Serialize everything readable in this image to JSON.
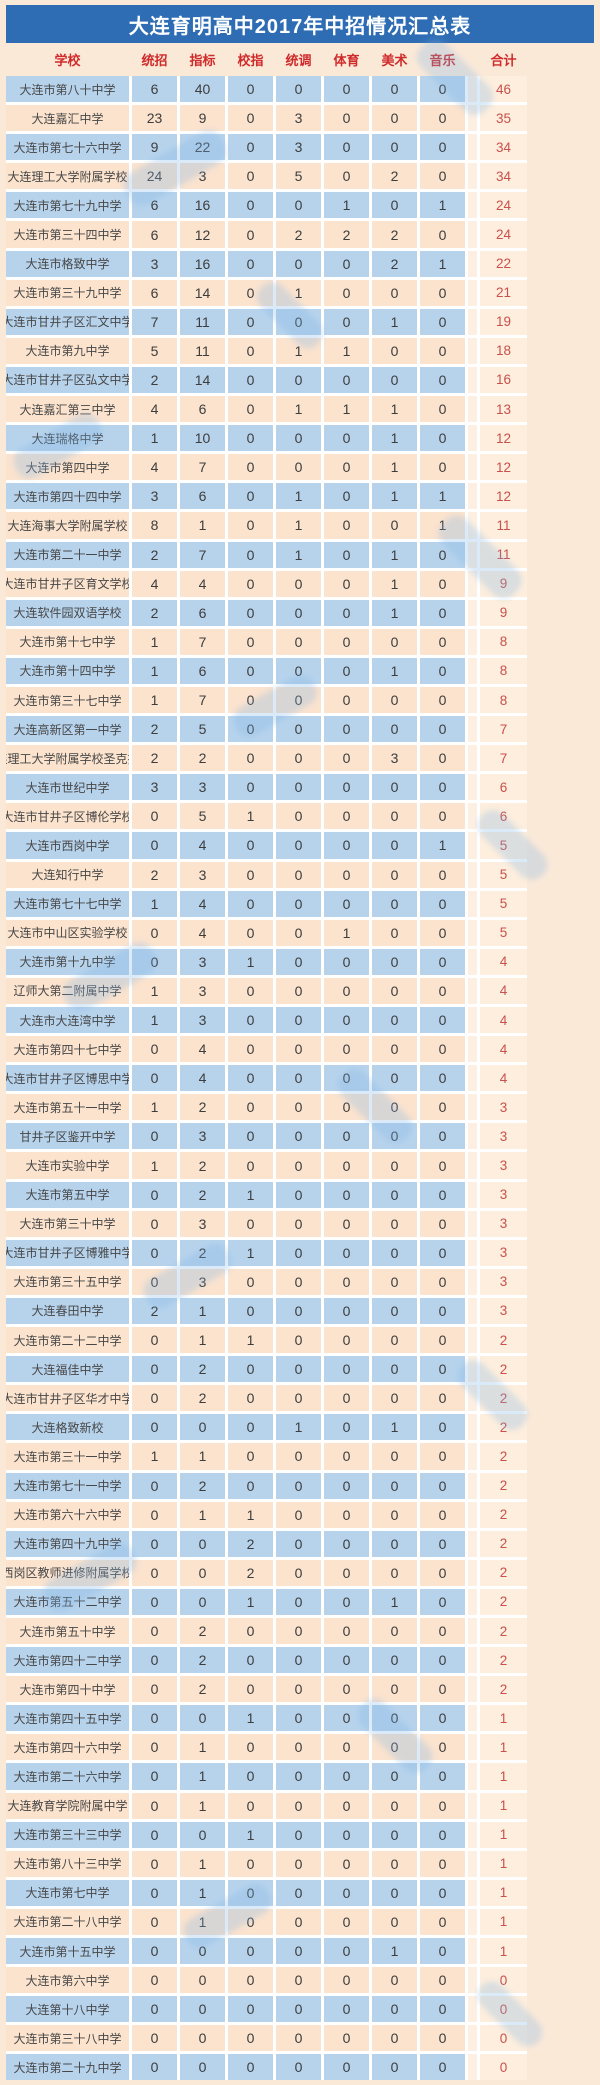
{
  "title": "大连育明高中2017年中招情况汇总表",
  "colors": {
    "title_bar": "#2e6db4",
    "header_text": "#cf2b2b",
    "row_blue": "#b7d3ec",
    "row_peach": "#fbe3ce",
    "page_background": "#fbe9d8",
    "total_text": "#c9504d"
  },
  "chart_data": {
    "type": "table",
    "title": "大连育明高中2017年中招情况汇总表",
    "columns": [
      "学校",
      "统招",
      "指标",
      "校指",
      "统调",
      "体育",
      "美术",
      "音乐",
      "合计"
    ],
    "rows": [
      {
        "school": "大连市第八十中学",
        "values": [
          6,
          40,
          0,
          0,
          0,
          0,
          0
        ],
        "total": 46
      },
      {
        "school": "大连嘉汇中学",
        "values": [
          23,
          9,
          0,
          3,
          0,
          0,
          0
        ],
        "total": 35
      },
      {
        "school": "大连市第七十六中学",
        "values": [
          9,
          22,
          0,
          3,
          0,
          0,
          0
        ],
        "total": 34
      },
      {
        "school": "大连理工大学附属学校",
        "values": [
          24,
          3,
          0,
          5,
          0,
          2,
          0
        ],
        "total": 34
      },
      {
        "school": "大连市第七十九中学",
        "values": [
          6,
          16,
          0,
          0,
          1,
          0,
          1
        ],
        "total": 24
      },
      {
        "school": "大连市第三十四中学",
        "values": [
          6,
          12,
          0,
          2,
          2,
          2,
          0
        ],
        "total": 24
      },
      {
        "school": "大连市格致中学",
        "values": [
          3,
          16,
          0,
          0,
          0,
          2,
          1
        ],
        "total": 22
      },
      {
        "school": "大连市第三十九中学",
        "values": [
          6,
          14,
          0,
          1,
          0,
          0,
          0
        ],
        "total": 21
      },
      {
        "school": "大连市甘井子区汇文中学",
        "values": [
          7,
          11,
          0,
          0,
          0,
          1,
          0
        ],
        "total": 19
      },
      {
        "school": "大连市第九中学",
        "values": [
          5,
          11,
          0,
          1,
          1,
          0,
          0
        ],
        "total": 18
      },
      {
        "school": "大连市甘井子区弘文中学",
        "values": [
          2,
          14,
          0,
          0,
          0,
          0,
          0
        ],
        "total": 16
      },
      {
        "school": "大连嘉汇第三中学",
        "values": [
          4,
          6,
          0,
          1,
          1,
          1,
          0
        ],
        "total": 13
      },
      {
        "school": "大连瑞格中学",
        "values": [
          1,
          10,
          0,
          0,
          0,
          1,
          0
        ],
        "total": 12
      },
      {
        "school": "大连市第四中学",
        "values": [
          4,
          7,
          0,
          0,
          0,
          1,
          0
        ],
        "total": 12
      },
      {
        "school": "大连市第四十四中学",
        "values": [
          3,
          6,
          0,
          1,
          0,
          1,
          1
        ],
        "total": 12
      },
      {
        "school": "大连海事大学附属学校",
        "values": [
          8,
          1,
          0,
          1,
          0,
          0,
          1
        ],
        "total": 11
      },
      {
        "school": "大连市第二十一中学",
        "values": [
          2,
          7,
          0,
          1,
          0,
          1,
          0
        ],
        "total": 11
      },
      {
        "school": "大连市甘井子区育文学校",
        "values": [
          4,
          4,
          0,
          0,
          0,
          1,
          0
        ],
        "total": 9
      },
      {
        "school": "大连软件园双语学校",
        "values": [
          2,
          6,
          0,
          0,
          0,
          1,
          0
        ],
        "total": 9
      },
      {
        "school": "大连市第十七中学",
        "values": [
          1,
          7,
          0,
          0,
          0,
          0,
          0
        ],
        "total": 8
      },
      {
        "school": "大连市第十四中学",
        "values": [
          1,
          6,
          0,
          0,
          0,
          1,
          0
        ],
        "total": 8
      },
      {
        "school": "大连市第三十七中学",
        "values": [
          1,
          7,
          0,
          0,
          0,
          0,
          0
        ],
        "total": 8
      },
      {
        "school": "大连高新区第一中学",
        "values": [
          2,
          5,
          0,
          0,
          0,
          0,
          0
        ],
        "total": 7
      },
      {
        "school": "大连理工大学附属学校圣克拉玛",
        "values": [
          2,
          2,
          0,
          0,
          0,
          3,
          0
        ],
        "total": 7
      },
      {
        "school": "大连市世纪中学",
        "values": [
          3,
          3,
          0,
          0,
          0,
          0,
          0
        ],
        "total": 6
      },
      {
        "school": "大连市甘井子区博伦学校",
        "values": [
          0,
          5,
          1,
          0,
          0,
          0,
          0
        ],
        "total": 6
      },
      {
        "school": "大连市西岗中学",
        "values": [
          0,
          4,
          0,
          0,
          0,
          0,
          1
        ],
        "total": 5
      },
      {
        "school": "大连知行中学",
        "values": [
          2,
          3,
          0,
          0,
          0,
          0,
          0
        ],
        "total": 5
      },
      {
        "school": "大连市第七十七中学",
        "values": [
          1,
          4,
          0,
          0,
          0,
          0,
          0
        ],
        "total": 5
      },
      {
        "school": "大连市中山区实验学校",
        "values": [
          0,
          4,
          0,
          0,
          1,
          0,
          0
        ],
        "total": 5
      },
      {
        "school": "大连市第十九中学",
        "values": [
          0,
          3,
          1,
          0,
          0,
          0,
          0
        ],
        "total": 4
      },
      {
        "school": "辽师大第二附属中学",
        "values": [
          1,
          3,
          0,
          0,
          0,
          0,
          0
        ],
        "total": 4
      },
      {
        "school": "大连市大连湾中学",
        "values": [
          1,
          3,
          0,
          0,
          0,
          0,
          0
        ],
        "total": 4
      },
      {
        "school": "大连市第四十七中学",
        "values": [
          0,
          4,
          0,
          0,
          0,
          0,
          0
        ],
        "total": 4
      },
      {
        "school": "大连市甘井子区博思中学",
        "values": [
          0,
          4,
          0,
          0,
          0,
          0,
          0
        ],
        "total": 4
      },
      {
        "school": "大连市第五十一中学",
        "values": [
          1,
          2,
          0,
          0,
          0,
          0,
          0
        ],
        "total": 3
      },
      {
        "school": "甘井子区鉴开中学",
        "values": [
          0,
          3,
          0,
          0,
          0,
          0,
          0
        ],
        "total": 3
      },
      {
        "school": "大连市实验中学",
        "values": [
          1,
          2,
          0,
          0,
          0,
          0,
          0
        ],
        "total": 3
      },
      {
        "school": "大连市第五中学",
        "values": [
          0,
          2,
          1,
          0,
          0,
          0,
          0
        ],
        "total": 3
      },
      {
        "school": "大连市第三十中学",
        "values": [
          0,
          3,
          0,
          0,
          0,
          0,
          0
        ],
        "total": 3
      },
      {
        "school": "大连市甘井子区博雅中学",
        "values": [
          0,
          2,
          1,
          0,
          0,
          0,
          0
        ],
        "total": 3
      },
      {
        "school": "大连市第三十五中学",
        "values": [
          0,
          3,
          0,
          0,
          0,
          0,
          0
        ],
        "total": 3
      },
      {
        "school": "大连春田中学",
        "values": [
          2,
          1,
          0,
          0,
          0,
          0,
          0
        ],
        "total": 3
      },
      {
        "school": "大连市第二十二中学",
        "values": [
          0,
          1,
          1,
          0,
          0,
          0,
          0
        ],
        "total": 2
      },
      {
        "school": "大连福佳中学",
        "values": [
          0,
          2,
          0,
          0,
          0,
          0,
          0
        ],
        "total": 2
      },
      {
        "school": "大连市甘井子区华才中学",
        "values": [
          0,
          2,
          0,
          0,
          0,
          0,
          0
        ],
        "total": 2
      },
      {
        "school": "大连格致新校",
        "values": [
          0,
          0,
          0,
          1,
          0,
          1,
          0
        ],
        "total": 2
      },
      {
        "school": "大连市第三十一中学",
        "values": [
          1,
          1,
          0,
          0,
          0,
          0,
          0
        ],
        "total": 2
      },
      {
        "school": "大连市第七十一中学",
        "values": [
          0,
          2,
          0,
          0,
          0,
          0,
          0
        ],
        "total": 2
      },
      {
        "school": "大连市第六十六中学",
        "values": [
          0,
          1,
          1,
          0,
          0,
          0,
          0
        ],
        "total": 2
      },
      {
        "school": "大连市第四十九中学",
        "values": [
          0,
          0,
          2,
          0,
          0,
          0,
          0
        ],
        "total": 2
      },
      {
        "school": "西岗区教师进修附属学校",
        "values": [
          0,
          0,
          2,
          0,
          0,
          0,
          0
        ],
        "total": 2
      },
      {
        "school": "大连市第五十二中学",
        "values": [
          0,
          0,
          1,
          0,
          0,
          1,
          0
        ],
        "total": 2
      },
      {
        "school": "大连市第五十中学",
        "values": [
          0,
          2,
          0,
          0,
          0,
          0,
          0
        ],
        "total": 2
      },
      {
        "school": "大连市第四十二中学",
        "values": [
          0,
          2,
          0,
          0,
          0,
          0,
          0
        ],
        "total": 2
      },
      {
        "school": "大连市第四十中学",
        "values": [
          0,
          2,
          0,
          0,
          0,
          0,
          0
        ],
        "total": 2
      },
      {
        "school": "大连市第四十五中学",
        "values": [
          0,
          0,
          1,
          0,
          0,
          0,
          0
        ],
        "total": 1
      },
      {
        "school": "大连市第四十六中学",
        "values": [
          0,
          1,
          0,
          0,
          0,
          0,
          0
        ],
        "total": 1
      },
      {
        "school": "大连市第二十六中学",
        "values": [
          0,
          1,
          0,
          0,
          0,
          0,
          0
        ],
        "total": 1
      },
      {
        "school": "大连教育学院附属中学",
        "values": [
          0,
          1,
          0,
          0,
          0,
          0,
          0
        ],
        "total": 1
      },
      {
        "school": "大连市第三十三中学",
        "values": [
          0,
          0,
          1,
          0,
          0,
          0,
          0
        ],
        "total": 1
      },
      {
        "school": "大连市第八十三中学",
        "values": [
          0,
          1,
          0,
          0,
          0,
          0,
          0
        ],
        "total": 1
      },
      {
        "school": "大连市第七中学",
        "values": [
          0,
          1,
          0,
          0,
          0,
          0,
          0
        ],
        "total": 1
      },
      {
        "school": "大连市第二十八中学",
        "values": [
          0,
          1,
          0,
          0,
          0,
          0,
          0
        ],
        "total": 1
      },
      {
        "school": "大连市第十五中学",
        "values": [
          0,
          0,
          0,
          0,
          0,
          1,
          0
        ],
        "total": 1
      },
      {
        "school": "大连市第六中学",
        "values": [
          0,
          0,
          0,
          0,
          0,
          0,
          0
        ],
        "total": 0
      },
      {
        "school": "大连第十八中学",
        "values": [
          0,
          0,
          0,
          0,
          0,
          0,
          0
        ],
        "total": 0
      },
      {
        "school": "大连市第三十八中学",
        "values": [
          0,
          0,
          0,
          0,
          0,
          0,
          0
        ],
        "total": 0
      },
      {
        "school": "大连市第二十九中学",
        "values": [
          0,
          0,
          0,
          0,
          0,
          0,
          0
        ],
        "total": 0
      }
    ]
  }
}
